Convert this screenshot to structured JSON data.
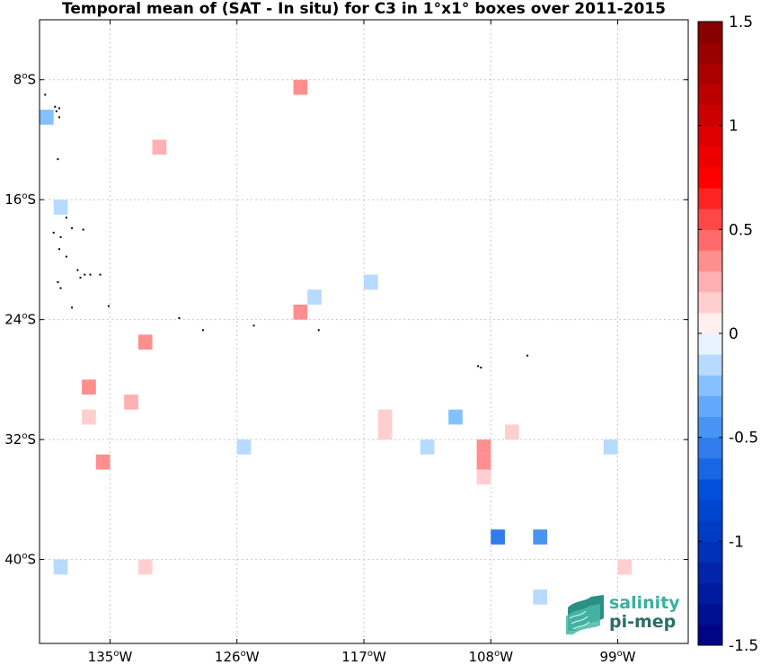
{
  "chart_data": {
    "type": "heatmap",
    "title": "Temporal mean of (SAT - In situ) for C3 in 1°x1° boxes over 2011-2015",
    "xlim": [
      -140,
      -94
    ],
    "ylim": [
      -45.6,
      -4
    ],
    "x_ticks": [
      {
        "value": -135,
        "label": "135°W"
      },
      {
        "value": -126,
        "label": "126°W"
      },
      {
        "value": -117,
        "label": "117°W"
      },
      {
        "value": -108,
        "label": "108°W"
      },
      {
        "value": -99,
        "label": "99°W"
      }
    ],
    "y_ticks": [
      {
        "value": -8,
        "label": "8°S"
      },
      {
        "value": -16,
        "label": "16°S"
      },
      {
        "value": -24,
        "label": "24°S"
      },
      {
        "value": -32,
        "label": "32°S"
      },
      {
        "value": -40,
        "label": "40°S"
      }
    ],
    "grid": true,
    "colorbar": {
      "range": [
        -1.5,
        1.5
      ],
      "levels": 30,
      "tick_labels": [
        {
          "value": 1.5,
          "label": "1.5"
        },
        {
          "value": 1,
          "label": "1"
        },
        {
          "value": 0.5,
          "label": "0.5"
        },
        {
          "value": 0,
          "label": "0"
        },
        {
          "value": -0.5,
          "label": "-0.5"
        },
        {
          "value": -1,
          "label": "-1"
        },
        {
          "value": -1.5,
          "label": "-1.5"
        }
      ],
      "position": "right"
    },
    "cells": [
      {
        "lon": -139.5,
        "lat": -10.5,
        "value": -0.25
      },
      {
        "lon": -138.5,
        "lat": -16.5,
        "value": -0.15
      },
      {
        "lon": -138.5,
        "lat": -40.5,
        "value": -0.1
      },
      {
        "lon": -136.5,
        "lat": -28.5,
        "value": 0.35
      },
      {
        "lon": -136.5,
        "lat": -30.5,
        "value": 0.15
      },
      {
        "lon": -135.5,
        "lat": -33.5,
        "value": 0.35
      },
      {
        "lon": -133.5,
        "lat": -29.5,
        "value": 0.2
      },
      {
        "lon": -132.5,
        "lat": -25.5,
        "value": 0.35
      },
      {
        "lon": -132.5,
        "lat": -40.5,
        "value": 0.15
      },
      {
        "lon": -131.5,
        "lat": -12.5,
        "value": 0.2
      },
      {
        "lon": -125.5,
        "lat": -32.5,
        "value": -0.1
      },
      {
        "lon": -121.5,
        "lat": -8.5,
        "value": 0.35
      },
      {
        "lon": -121.5,
        "lat": -23.5,
        "value": 0.35
      },
      {
        "lon": -120.5,
        "lat": -22.5,
        "value": -0.1
      },
      {
        "lon": -116.5,
        "lat": -21.5,
        "value": -0.1
      },
      {
        "lon": -115.5,
        "lat": -30.5,
        "value": 0.15
      },
      {
        "lon": -115.5,
        "lat": -31.5,
        "value": 0.15
      },
      {
        "lon": -112.5,
        "lat": -32.5,
        "value": -0.1
      },
      {
        "lon": -110.5,
        "lat": -30.5,
        "value": -0.25
      },
      {
        "lon": -108.5,
        "lat": -32.5,
        "value": 0.35
      },
      {
        "lon": -108.5,
        "lat": -33.5,
        "value": 0.35
      },
      {
        "lon": -108.5,
        "lat": -34.5,
        "value": 0.15
      },
      {
        "lon": -107.5,
        "lat": -38.5,
        "value": -0.55
      },
      {
        "lon": -106.5,
        "lat": -31.5,
        "value": 0.15
      },
      {
        "lon": -104.5,
        "lat": -38.5,
        "value": -0.45
      },
      {
        "lon": -104.5,
        "lat": -42.5,
        "value": -0.1
      },
      {
        "lon": -99.5,
        "lat": -32.5,
        "value": -0.1
      },
      {
        "lon": -98.5,
        "lat": -40.5,
        "value": 0.15
      }
    ]
  },
  "logo": {
    "line1": "salinity",
    "line2": "pi-mep"
  },
  "colors": {
    "logo_line1": "#3ab09e",
    "logo_line2": "#2a6e66",
    "land": "#000000",
    "grid": "#c8c8c8"
  }
}
